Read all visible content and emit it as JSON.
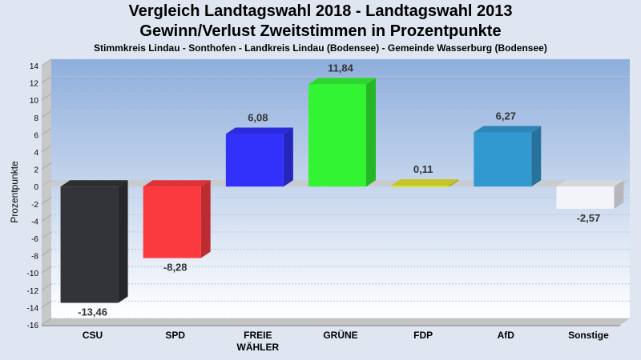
{
  "chart_data": {
    "type": "bar",
    "title": "Vergleich Landtagswahl 2018 - Landtagswahl 2013",
    "subtitle_line": "Gewinn/Verlust Zweitstimmen in Prozentpunkte",
    "subtitle": "Stimmkreis Lindau - Sonthofen - Landkreis Lindau (Bodensee) - Gemeinde Wasserburg (Bodensee)",
    "ylabel": "Prozentpunkte",
    "xlabel": "",
    "ylim": [
      -16,
      14
    ],
    "yticks": [
      14,
      12,
      10,
      8,
      6,
      4,
      2,
      0,
      -2,
      -4,
      -6,
      -8,
      -10,
      -12,
      -14,
      -16
    ],
    "grid": true,
    "categories": [
      [
        "CSU"
      ],
      [
        "SPD"
      ],
      [
        "FREIE",
        "WÄHLER"
      ],
      [
        "GRÜNE"
      ],
      [
        "FDP"
      ],
      [
        "AfD"
      ],
      [
        "Sonstige"
      ]
    ],
    "values": [
      -13.46,
      -8.28,
      6.08,
      11.84,
      0.11,
      6.27,
      -2.57
    ],
    "value_labels": [
      "-13,46",
      "-8,28",
      "6,08",
      "11,84",
      "0,11",
      "6,27",
      "-2,57"
    ],
    "colors": [
      "#333438",
      "#fb3a40",
      "#3131fb",
      "#33f433",
      "#e0e031",
      "#3298d0",
      "#f2f4fa"
    ]
  }
}
